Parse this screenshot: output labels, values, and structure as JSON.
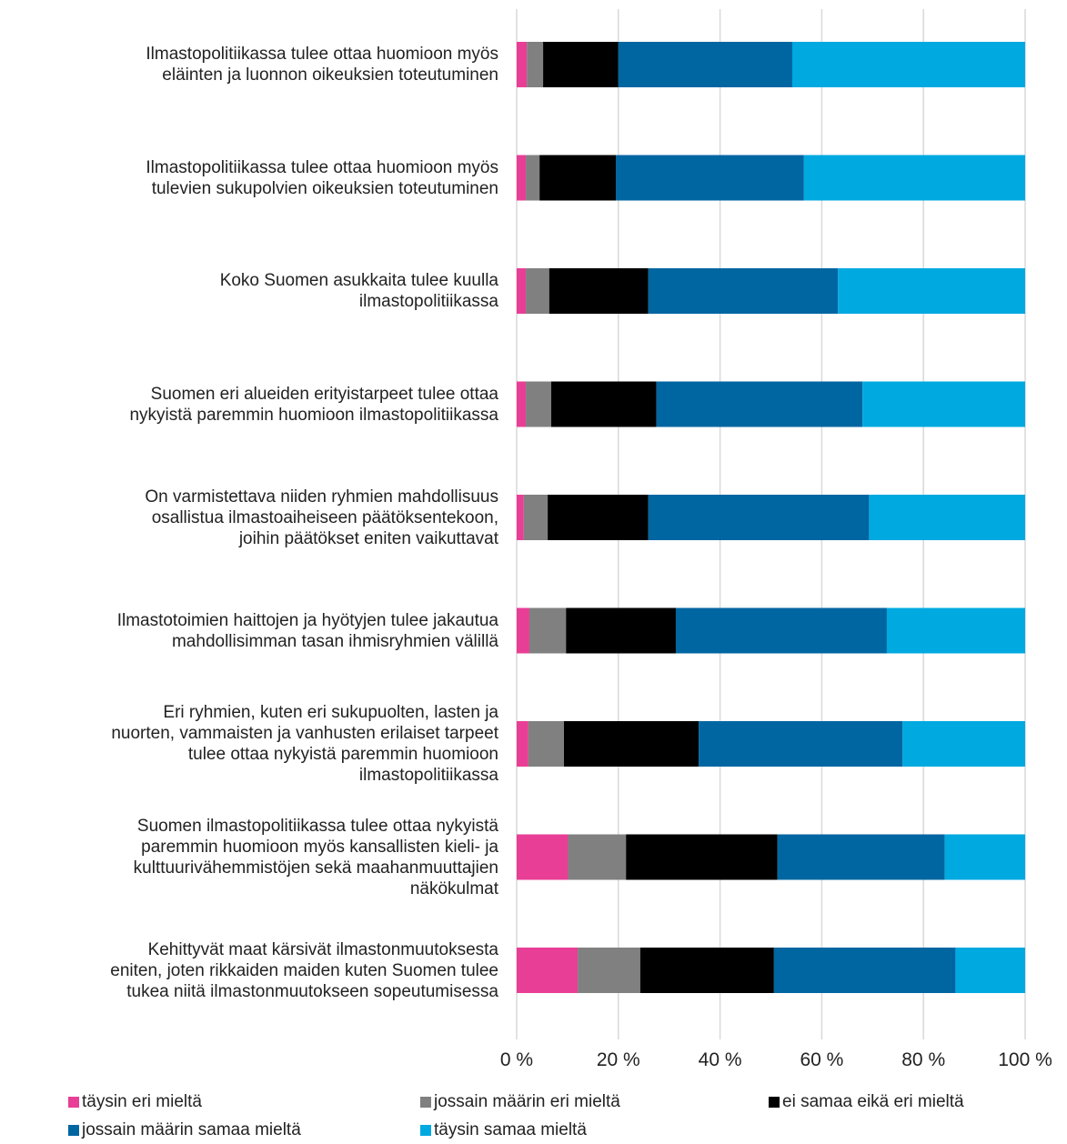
{
  "chart_data": {
    "type": "stacked_barh",
    "categories": [
      "Ilmastopolitiikassa tulee ottaa huomioon myös\neläinten ja luonnon oikeuksien toteutuminen",
      "Ilmastopolitiikassa tulee ottaa huomioon myös\ntulevien sukupolvien oikeuksien toteutuminen",
      "Koko Suomen asukkaita tulee kuulla\nilmastopolitiikassa",
      "Suomen eri alueiden erityistarpeet tulee ottaa\nnykyistä paremmin huomioon ilmastopolitiikassa",
      "On varmistettava niiden ryhmien mahdollisuus\nosallistua ilmastoaiheiseen päätöksentekoon,\njoihin päätökset eniten vaikuttavat",
      "Ilmastotoimien haittojen ja hyötyjen tulee jakautua\nmahdollisimman tasan ihmisryhmien välillä",
      "Eri ryhmien, kuten eri sukupuolten, lasten ja\nnuorten, vammaisten ja vanhusten erilaiset tarpeet\ntulee ottaa nykyistä paremmin huomioon\nilmastopolitiikassa",
      "Suomen ilmastopolitiikassa tulee ottaa nykyistä\nparemmin huomioon myös kansallisten kieli- ja\nkulttuurivähemmistöjen sekä maahanmuuttajien\nnäkökulmat",
      "Kehittyvät maat kärsivät ilmastonmuutoksesta\neniten, joten rikkaiden maiden kuten Suomen tulee\ntukea niitä ilmastonmuutokseen sopeutumisessa"
    ],
    "series": [
      {
        "name": "täysin eri mieltä",
        "color": "#e83e96",
        "values": [
          2.0,
          1.8,
          1.8,
          1.8,
          1.4,
          2.5,
          2.3,
          10.1,
          12.0
        ]
      },
      {
        "name": "jossain määrin eri mieltä",
        "color": "#808080",
        "values": [
          3.2,
          2.7,
          4.6,
          5.0,
          4.7,
          7.2,
          7.0,
          11.4,
          12.3
        ]
      },
      {
        "name": "ei samaa eikä eri mieltä",
        "color": "#000000",
        "values": [
          14.8,
          15.0,
          19.5,
          20.7,
          19.8,
          21.6,
          26.5,
          29.8,
          26.3
        ]
      },
      {
        "name": "jossain määrin samaa mieltä",
        "color": "#0066a1",
        "values": [
          34.2,
          37.0,
          37.3,
          40.5,
          43.4,
          41.5,
          40.1,
          32.9,
          35.7
        ]
      },
      {
        "name": "täysin samaa mieltä",
        "color": "#00a9e0",
        "values": [
          45.8,
          43.5,
          36.8,
          32.0,
          30.7,
          27.2,
          24.1,
          15.8,
          13.7
        ]
      }
    ],
    "xlim": [
      0,
      100
    ],
    "xticks": [
      {
        "value": 0,
        "label": "0 %"
      },
      {
        "value": 20,
        "label": "20 %"
      },
      {
        "value": 40,
        "label": "40 %"
      },
      {
        "value": 60,
        "label": "60 %"
      },
      {
        "value": 80,
        "label": "80 %"
      },
      {
        "value": 100,
        "label": "100 %"
      }
    ],
    "grid": true
  }
}
